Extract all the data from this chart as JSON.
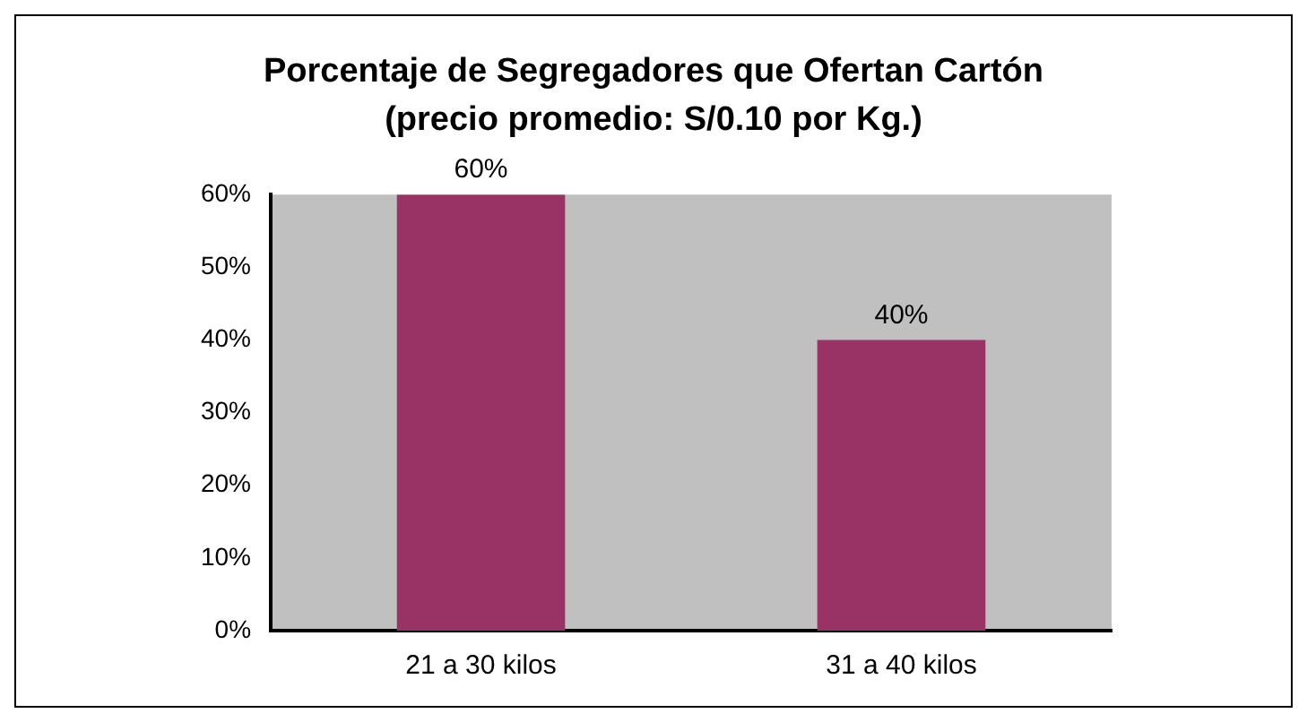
{
  "chart_data": {
    "type": "bar",
    "title": "Porcentaje de Segregadores que Ofertan Cartón",
    "subtitle": "(precio promedio: S/0.10 por Kg.)",
    "categories": [
      "21 a 30 kilos",
      "31 a 40 kilos"
    ],
    "values": [
      60,
      40
    ],
    "value_labels": [
      "60%",
      "40%"
    ],
    "color": "#993366",
    "ylim": [
      0,
      60
    ],
    "yticks": [
      {
        "value": 0,
        "label": "0%"
      },
      {
        "value": 10,
        "label": "10%"
      },
      {
        "value": 20,
        "label": "20%"
      },
      {
        "value": 30,
        "label": "30%"
      },
      {
        "value": 40,
        "label": "40%"
      },
      {
        "value": 50,
        "label": "50%"
      },
      {
        "value": 60,
        "label": "60%"
      }
    ],
    "grid": false,
    "legend": false
  }
}
